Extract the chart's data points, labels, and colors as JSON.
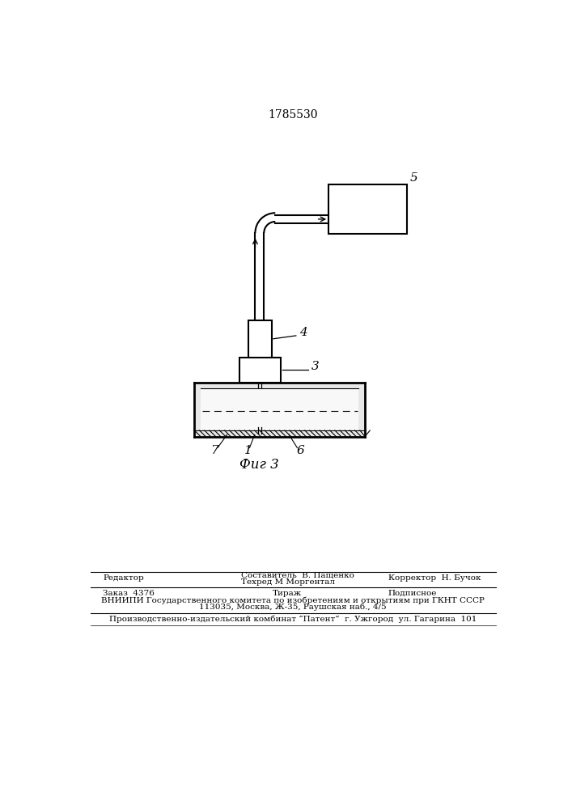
{
  "title_number": "1785530",
  "fig_label": "Фиг 3",
  "background_color": "#ffffff",
  "line_color": "#000000",
  "label_5": "5",
  "label_4": "4",
  "label_3": "3",
  "label_7": "7",
  "label_1": "1",
  "label_6": "6",
  "footer_line1_left": "Редактор",
  "footer_line1_center": "Составитель  В. Пащенко",
  "footer_line2_center": "Техред М Моргентал",
  "footer_line2_right": "Корректор  Н. Бучок   ",
  "footer_line3_left": "Заказ  4376",
  "footer_line3_center": "Тираж",
  "footer_line3_right": "Подписное",
  "footer_line4": "ВНИИПИ Государственного комитета по изобретениям и открытиям при ГКНТ СССР",
  "footer_line5": "113035, Москва, Ж-35, Раушская наб., 4/5",
  "footer_line6": "Производственно-издательский комбинат “Патент”  г. Ужгород  ул. Гагарина  101"
}
